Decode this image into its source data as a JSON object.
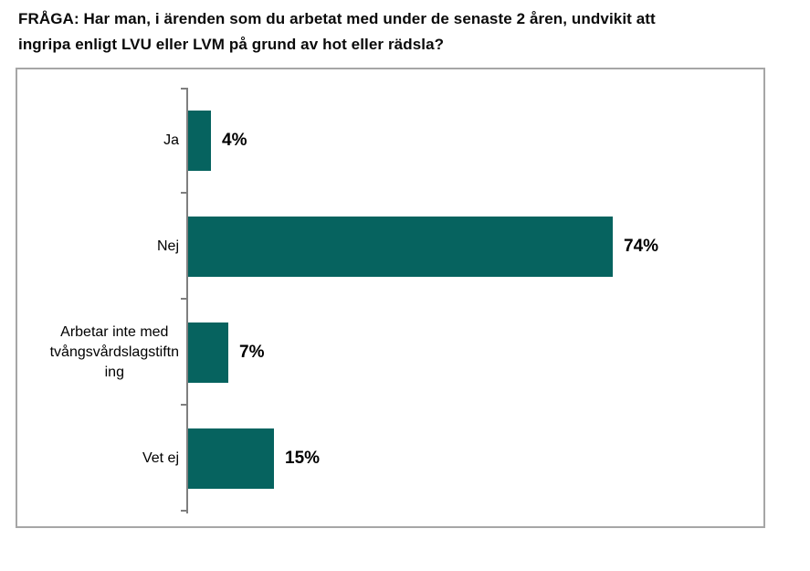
{
  "title": {
    "line1": "FRÅGA: Har man, i ärenden som du arbetat med under de senaste 2 åren, undvikit att",
    "line2": "ingripa enligt LVU eller LVM på grund av hot eller rädsla?"
  },
  "chart_data": {
    "type": "bar",
    "orientation": "horizontal",
    "title": "",
    "xlabel": "",
    "ylabel": "",
    "categories": [
      "Ja",
      "Nej",
      "Arbetar inte med\ntvångsvårdslagstiftn\ning",
      "Vet ej"
    ],
    "values": [
      4,
      74,
      7,
      15
    ],
    "value_labels": [
      "4%",
      "74%",
      "7%",
      "15%"
    ],
    "xlim": [
      0,
      100
    ],
    "grid": false,
    "legend": "none",
    "bar_color": "#06635f",
    "axis_color": "#7f7f7f",
    "border_color": "#a6a6a6",
    "label_color": "#000000"
  }
}
